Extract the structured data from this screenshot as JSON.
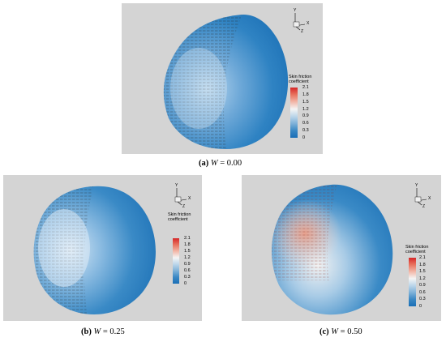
{
  "colorbar": {
    "title_line1": "Skin friction",
    "title_line2": "coefficient",
    "ticks": [
      "2.1",
      "1.8",
      "1.5",
      "1.2",
      "0.9",
      "0.6",
      "0.3",
      "0"
    ],
    "colors": [
      "#d62728",
      "#e8735f",
      "#f2b7a8",
      "#f5f5f5",
      "#bcd6ea",
      "#7fb2d8",
      "#3a88c4",
      "#1a6eb6"
    ]
  },
  "axis_labels": {
    "y": "Y",
    "x": "X",
    "z": "Z"
  },
  "panels": [
    {
      "id": "a",
      "caption_label": "(a)",
      "caption_var": "W",
      "caption_value": " = 0.00"
    },
    {
      "id": "b",
      "caption_label": "(b)",
      "caption_var": "W",
      "caption_value": " = 0.25"
    },
    {
      "id": "c",
      "caption_label": "(c)",
      "caption_var": "W",
      "caption_value": " = 0.50"
    }
  ]
}
